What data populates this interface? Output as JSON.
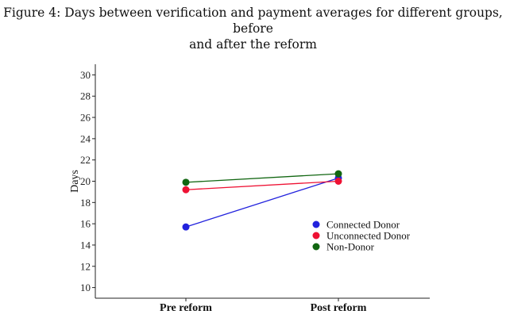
{
  "figure": {
    "caption_line1": "Figure 4: Days between verification and payment averages for different groups, before",
    "caption_line2": "and after the reform"
  },
  "chart_data": {
    "type": "line",
    "categories": [
      "Pre reform",
      "Post reform"
    ],
    "ylabel": "Days",
    "xlabel": "",
    "ylim": [
      9,
      31
    ],
    "yticks": [
      10,
      12,
      14,
      16,
      18,
      20,
      22,
      24,
      26,
      28,
      30
    ],
    "grid": false,
    "legend_position": "right",
    "series": [
      {
        "name": "Connected Donor",
        "values": [
          15.7,
          20.3
        ],
        "color": "#2222dd"
      },
      {
        "name": "Unconnected Donor",
        "values": [
          19.2,
          20.0
        ],
        "color": "#ee1133"
      },
      {
        "name": "Non-Donor",
        "values": [
          19.9,
          20.7
        ],
        "color": "#116611"
      }
    ]
  }
}
